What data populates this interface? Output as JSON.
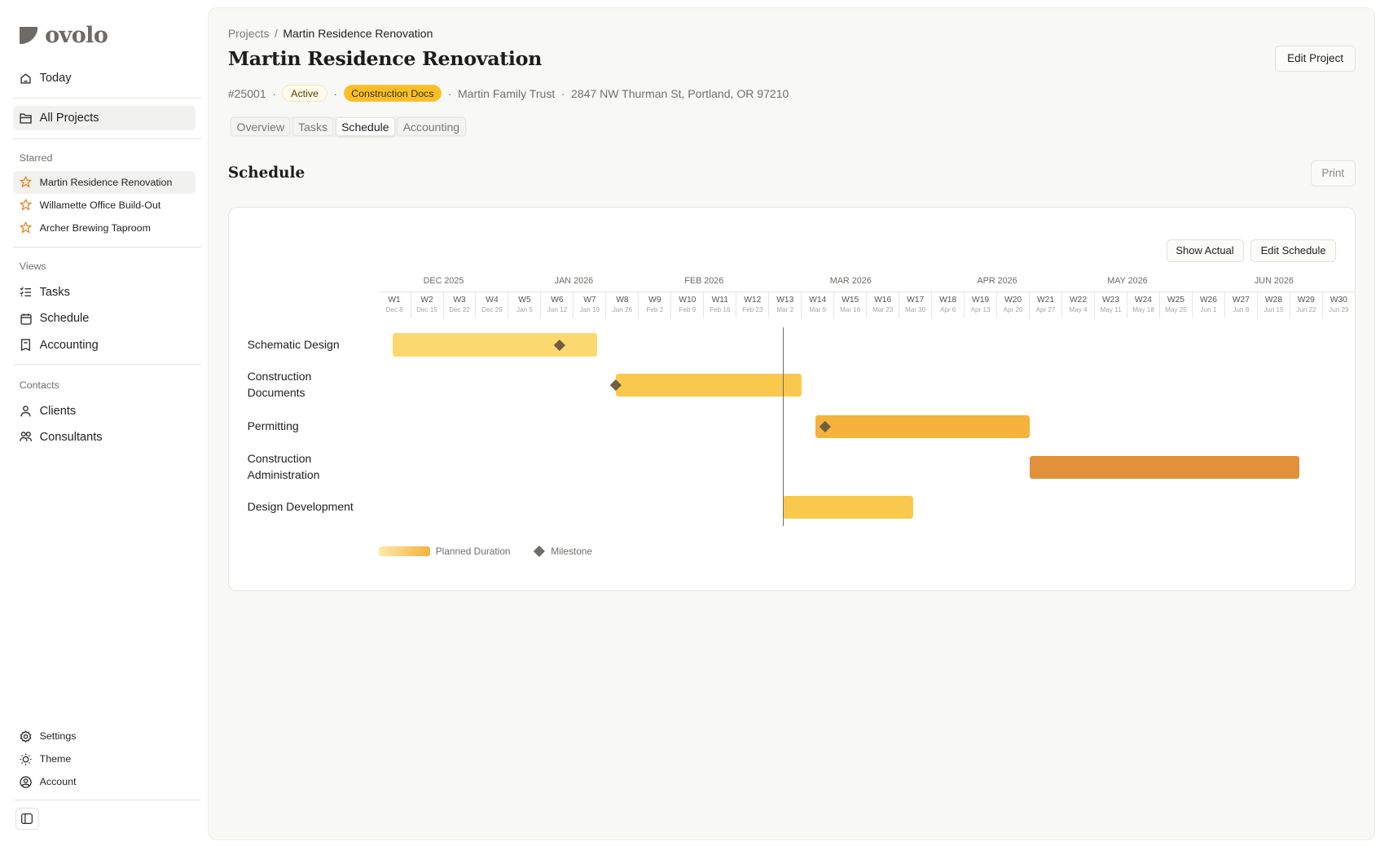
{
  "app": {
    "logo": "ovolo"
  },
  "sidebar": {
    "today": "Today",
    "all_projects": "All Projects",
    "starred_label": "Starred",
    "starred": [
      {
        "label": "Martin Residence Renovation",
        "selected": true
      },
      {
        "label": "Willamette Office Build-Out"
      },
      {
        "label": "Archer Brewing Taproom"
      }
    ],
    "views_label": "Views",
    "views": [
      {
        "label": "Tasks",
        "icon": "list-check-icon"
      },
      {
        "label": "Schedule",
        "icon": "calendar-icon"
      },
      {
        "label": "Accounting",
        "icon": "receipt-icon"
      }
    ],
    "contacts_label": "Contacts",
    "contacts": [
      {
        "label": "Clients",
        "icon": "user-icon"
      },
      {
        "label": "Consultants",
        "icon": "users-icon"
      }
    ],
    "bottom": [
      {
        "label": "Settings",
        "icon": "gear-icon"
      },
      {
        "label": "Theme",
        "icon": "sun-icon"
      },
      {
        "label": "Account",
        "icon": "account-circle-icon"
      }
    ]
  },
  "header": {
    "breadcrumb": [
      "Projects",
      "Martin Residence Renovation"
    ],
    "title": "Martin Residence Renovation",
    "edit_project": "Edit Project",
    "number": "#25001",
    "status": "Active",
    "phase": "Construction Docs",
    "client": "Martin Family Trust",
    "address": "2847 NW Thurman St, Portland, OR 97210",
    "tabs": [
      "Overview",
      "Tasks",
      "Schedule",
      "Accounting"
    ],
    "active_tab": "Schedule"
  },
  "schedule": {
    "heading": "Schedule",
    "print": "Print",
    "show_actual": "Show Actual",
    "edit_schedule": "Edit Schedule",
    "legend": {
      "planned": "Planned Duration",
      "milestone": "Milestone"
    }
  },
  "chart_data": {
    "type": "gantt",
    "months": [
      {
        "label": "DEC 2025",
        "first_week": 1,
        "last_week": 4
      },
      {
        "label": "JAN 2026",
        "first_week": 5,
        "last_week": 8
      },
      {
        "label": "FEB 2026",
        "first_week": 9,
        "last_week": 12
      },
      {
        "label": "MAR 2026",
        "first_week": 13,
        "last_week": 17
      },
      {
        "label": "APR 2026",
        "first_week": 18,
        "last_week": 21
      },
      {
        "label": "MAY 2026",
        "first_week": 22,
        "last_week": 25
      },
      {
        "label": "JUN 2026",
        "first_week": 26,
        "last_week": 30
      }
    ],
    "weeks": [
      {
        "w": "W1",
        "d": "Dec 8"
      },
      {
        "w": "W2",
        "d": "Dec 15"
      },
      {
        "w": "W3",
        "d": "Dec 22"
      },
      {
        "w": "W4",
        "d": "Dec 29"
      },
      {
        "w": "W5",
        "d": "Jan 5"
      },
      {
        "w": "W6",
        "d": "Jan 12"
      },
      {
        "w": "W7",
        "d": "Jan 19"
      },
      {
        "w": "W8",
        "d": "Jan 26"
      },
      {
        "w": "W9",
        "d": "Feb 2"
      },
      {
        "w": "W10",
        "d": "Feb 9"
      },
      {
        "w": "W11",
        "d": "Feb 16"
      },
      {
        "w": "W12",
        "d": "Feb 23"
      },
      {
        "w": "W13",
        "d": "Mar 2"
      },
      {
        "w": "W14",
        "d": "Mar 9"
      },
      {
        "w": "W15",
        "d": "Mar 16"
      },
      {
        "w": "W16",
        "d": "Mar 23"
      },
      {
        "w": "W17",
        "d": "Mar 30"
      },
      {
        "w": "W18",
        "d": "Apr 6"
      },
      {
        "w": "W19",
        "d": "Apr 13"
      },
      {
        "w": "W20",
        "d": "Apr 20"
      },
      {
        "w": "W21",
        "d": "Apr 27"
      },
      {
        "w": "W22",
        "d": "May 4"
      },
      {
        "w": "W23",
        "d": "May 11"
      },
      {
        "w": "W24",
        "d": "May 18"
      },
      {
        "w": "W25",
        "d": "May 25"
      },
      {
        "w": "W26",
        "d": "Jun 1"
      },
      {
        "w": "W27",
        "d": "Jun 8"
      },
      {
        "w": "W28",
        "d": "Jun 15"
      },
      {
        "w": "W29",
        "d": "Jun 22"
      },
      {
        "w": "W30",
        "d": "Jun 29"
      }
    ],
    "axis_start": "2025-12-08",
    "today": "2026-03-05",
    "tasks": [
      {
        "name": "Schematic Design",
        "start": "2025-12-11",
        "end": "2026-01-24",
        "milestone": "2026-01-16",
        "color": "#fbd96f"
      },
      {
        "name": "Construction Documents",
        "start": "2026-01-28",
        "end": "2026-03-09",
        "milestone": "2026-01-28",
        "color": "#f9c94e"
      },
      {
        "name": "Permitting",
        "start": "2026-03-12",
        "end": "2026-04-27",
        "milestone": "2026-03-14",
        "color": "#f5b23c"
      },
      {
        "name": "Construction Administration",
        "start": "2026-04-27",
        "end": "2026-06-24",
        "color": "#e0913a"
      },
      {
        "name": "Design Development",
        "start": "2026-03-05",
        "end": "2026-04-02",
        "color": "#f9c94e"
      }
    ]
  }
}
